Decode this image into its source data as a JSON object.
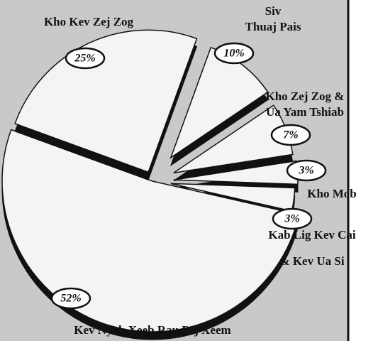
{
  "chart_data": {
    "type": "pie",
    "categories": [
      [
        "Siv",
        "Thuaj Pais"
      ],
      [
        "Kho Zej Zog &",
        "Ua Yam Tshiab"
      ],
      [
        "Kho Mob"
      ],
      [
        "Kab Lig Kev Cai",
        "& Kev Ua Si"
      ],
      [
        "Kev Nyab Xeeb Rau Pej Xeem"
      ],
      [
        "Kho Kev Zej Zog"
      ]
    ],
    "values": [
      10,
      7,
      3,
      3,
      52,
      25
    ],
    "value_labels": [
      "10%",
      "7%",
      "3%",
      "3%",
      "52%",
      "25%"
    ],
    "color": "#f4f4f4"
  }
}
